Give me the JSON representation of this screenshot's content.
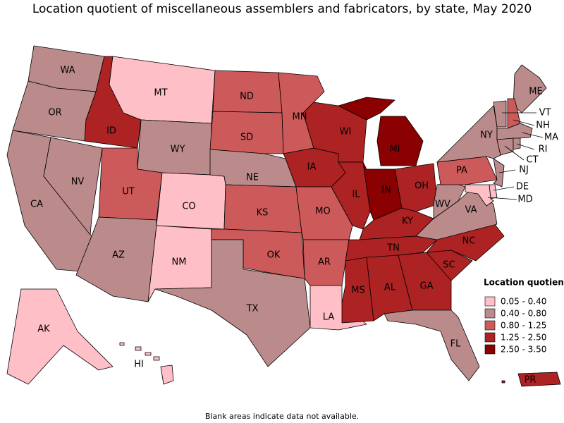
{
  "title": "Location quotient of miscellaneous assemblers and fabricators, by state, May 2020",
  "legend": {
    "title": "Location quotient",
    "entries": [
      {
        "label": "0.05 - 0.40",
        "color": "#ffbfc6"
      },
      {
        "label": "0.40 - 0.80",
        "color": "#bb8b8b"
      },
      {
        "label": "0.80 - 1.25",
        "color": "#cd5a5a"
      },
      {
        "label": "1.25 - 2.50",
        "color": "#ad2222"
      },
      {
        "label": "2.50 - 3.50",
        "color": "#8b0000"
      }
    ]
  },
  "states": [
    {
      "abbr": "WA",
      "class": 1
    },
    {
      "abbr": "OR",
      "class": 1
    },
    {
      "abbr": "CA",
      "class": 1
    },
    {
      "abbr": "NV",
      "class": 1
    },
    {
      "abbr": "ID",
      "class": 3
    },
    {
      "abbr": "MT",
      "class": 0
    },
    {
      "abbr": "WY",
      "class": 1
    },
    {
      "abbr": "UT",
      "class": 2
    },
    {
      "abbr": "AZ",
      "class": 1
    },
    {
      "abbr": "CO",
      "class": 0
    },
    {
      "abbr": "NM",
      "class": 0
    },
    {
      "abbr": "ND",
      "class": 2
    },
    {
      "abbr": "SD",
      "class": 2
    },
    {
      "abbr": "NE",
      "class": 1
    },
    {
      "abbr": "KS",
      "class": 2
    },
    {
      "abbr": "OK",
      "class": 2
    },
    {
      "abbr": "TX",
      "class": 1
    },
    {
      "abbr": "MN",
      "class": 2
    },
    {
      "abbr": "IA",
      "class": 3
    },
    {
      "abbr": "MO",
      "class": 2
    },
    {
      "abbr": "AR",
      "class": 2
    },
    {
      "abbr": "LA",
      "class": 0
    },
    {
      "abbr": "WI",
      "class": 3
    },
    {
      "abbr": "IL",
      "class": 3
    },
    {
      "abbr": "MI",
      "class": 4
    },
    {
      "abbr": "IN",
      "class": 4
    },
    {
      "abbr": "OH",
      "class": 3
    },
    {
      "abbr": "KY",
      "class": 3
    },
    {
      "abbr": "TN",
      "class": 3
    },
    {
      "abbr": "MS",
      "class": 3
    },
    {
      "abbr": "AL",
      "class": 3
    },
    {
      "abbr": "GA",
      "class": 3
    },
    {
      "abbr": "FL",
      "class": 1
    },
    {
      "abbr": "SC",
      "class": 3
    },
    {
      "abbr": "NC",
      "class": 3
    },
    {
      "abbr": "VA",
      "class": 1
    },
    {
      "abbr": "WV",
      "class": 1
    },
    {
      "abbr": "PA",
      "class": 2
    },
    {
      "abbr": "NY",
      "class": 1
    },
    {
      "abbr": "ME",
      "class": 1
    },
    {
      "abbr": "VT",
      "class": 1
    },
    {
      "abbr": "NH",
      "class": 2
    },
    {
      "abbr": "MA",
      "class": 1
    },
    {
      "abbr": "CT",
      "class": 1
    },
    {
      "abbr": "RI",
      "class": 1
    },
    {
      "abbr": "NJ",
      "class": 1
    },
    {
      "abbr": "DE",
      "class": 0
    },
    {
      "abbr": "MD",
      "class": 0
    },
    {
      "abbr": "AK",
      "class": 0
    },
    {
      "abbr": "HI",
      "class": 0
    },
    {
      "abbr": "PR",
      "class": 3
    }
  ],
  "note": "Blank areas indicate data not available."
}
